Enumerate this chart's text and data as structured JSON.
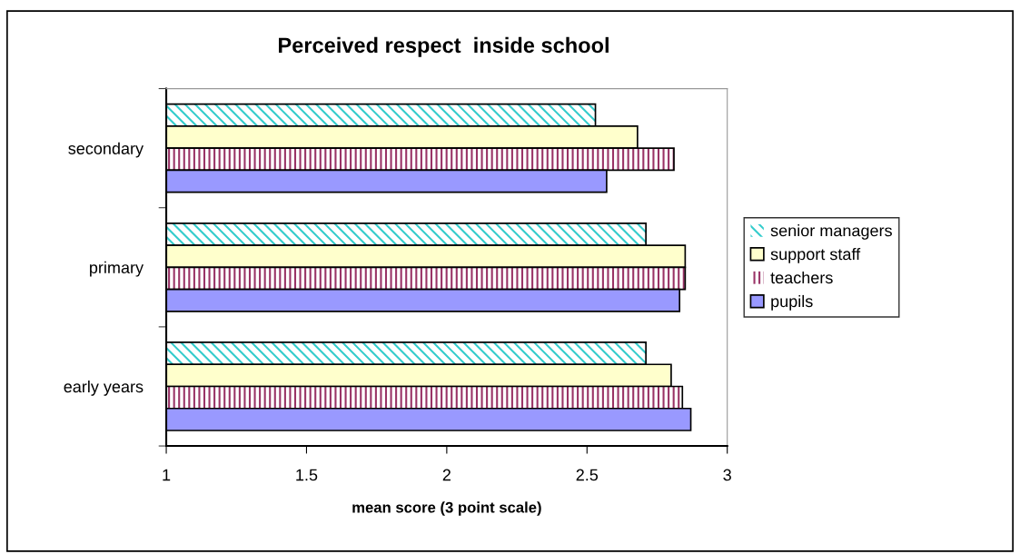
{
  "chart_data": {
    "type": "bar",
    "orientation": "horizontal",
    "title": "Perceived respect  inside school",
    "xlabel": "mean score (3 point scale)",
    "categories": [
      "secondary",
      "primary",
      "early years"
    ],
    "series": [
      {
        "name": "senior managers",
        "color": "#33cccc",
        "values": [
          2.53,
          2.71,
          2.71
        ]
      },
      {
        "name": "support staff",
        "color": "#ffffcc",
        "values": [
          2.68,
          2.85,
          2.8
        ]
      },
      {
        "name": "teachers",
        "color": "#993366",
        "values": [
          2.81,
          2.85,
          2.84
        ]
      },
      {
        "name": "pupils",
        "color": "#9999ff",
        "values": [
          2.57,
          2.83,
          2.87
        ]
      }
    ],
    "xlim": [
      1,
      3
    ],
    "xticks": [
      1,
      1.5,
      2,
      2.5,
      3
    ],
    "grid": false,
    "legend": "right"
  }
}
